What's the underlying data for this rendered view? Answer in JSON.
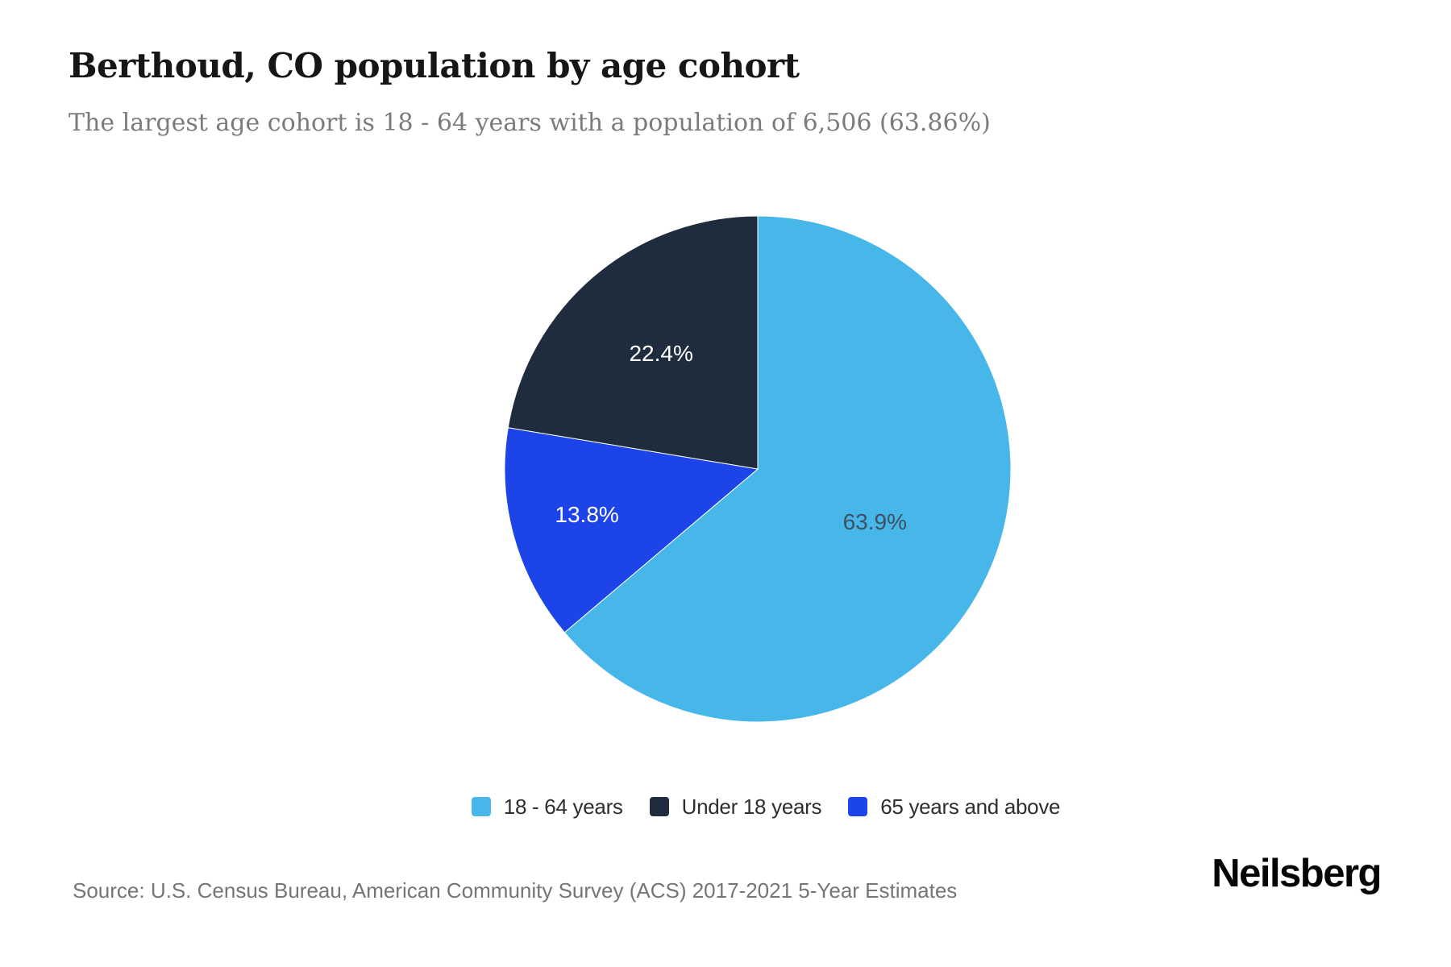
{
  "page": {
    "title": "Berthoud, CO population by age cohort",
    "subtitle": "The largest age cohort is 18 - 64 years with a population of 6,506 (63.86%)",
    "source": "Source: U.S. Census Bureau, American Community Survey (ACS) 2017-2021 5-Year Estimates",
    "logo": "Neilsberg"
  },
  "colors": {
    "light_blue": "#47b7e9",
    "navy": "#1e2c3d",
    "royal_blue": "#1c44e8",
    "title_text": "#161616",
    "subtitle_text": "#7b7b7e",
    "source_text": "#757575",
    "label_on_light": "#3e5064",
    "label_on_dark": "#ffffff"
  },
  "chart_data": {
    "type": "pie",
    "title": "Berthoud, CO population by age cohort",
    "subtitle": "The largest age cohort is 18 - 64 years with a population of 6,506 (63.86%)",
    "unit": "percent of total population",
    "largest_cohort": {
      "label": "18 - 64 years",
      "population": "6,506",
      "share": "63.86%"
    },
    "start_angle_deg": 0,
    "direction": "clockwise",
    "legend_position": "bottom-center",
    "slices": [
      {
        "label": "18 - 64 years",
        "value": 63.86,
        "display": "63.9%",
        "color": "#47b7e9",
        "label_color": "#3e5064",
        "label_r": 0.51
      },
      {
        "label": "65 years and above",
        "value": 13.8,
        "display": "13.8%",
        "color": "#1c44e8",
        "label_color": "#ffffff",
        "label_r": 0.7
      },
      {
        "label": "Under 18 years",
        "value": 22.4,
        "display": "22.4%",
        "color": "#1e2c3d",
        "label_color": "#ffffff",
        "label_r": 0.59
      }
    ],
    "legend": [
      {
        "label": "18 - 64 years",
        "color": "#47b7e9"
      },
      {
        "label": "Under 18 years",
        "color": "#1e2c3d"
      },
      {
        "label": "65 years and above",
        "color": "#1c44e8"
      }
    ]
  }
}
